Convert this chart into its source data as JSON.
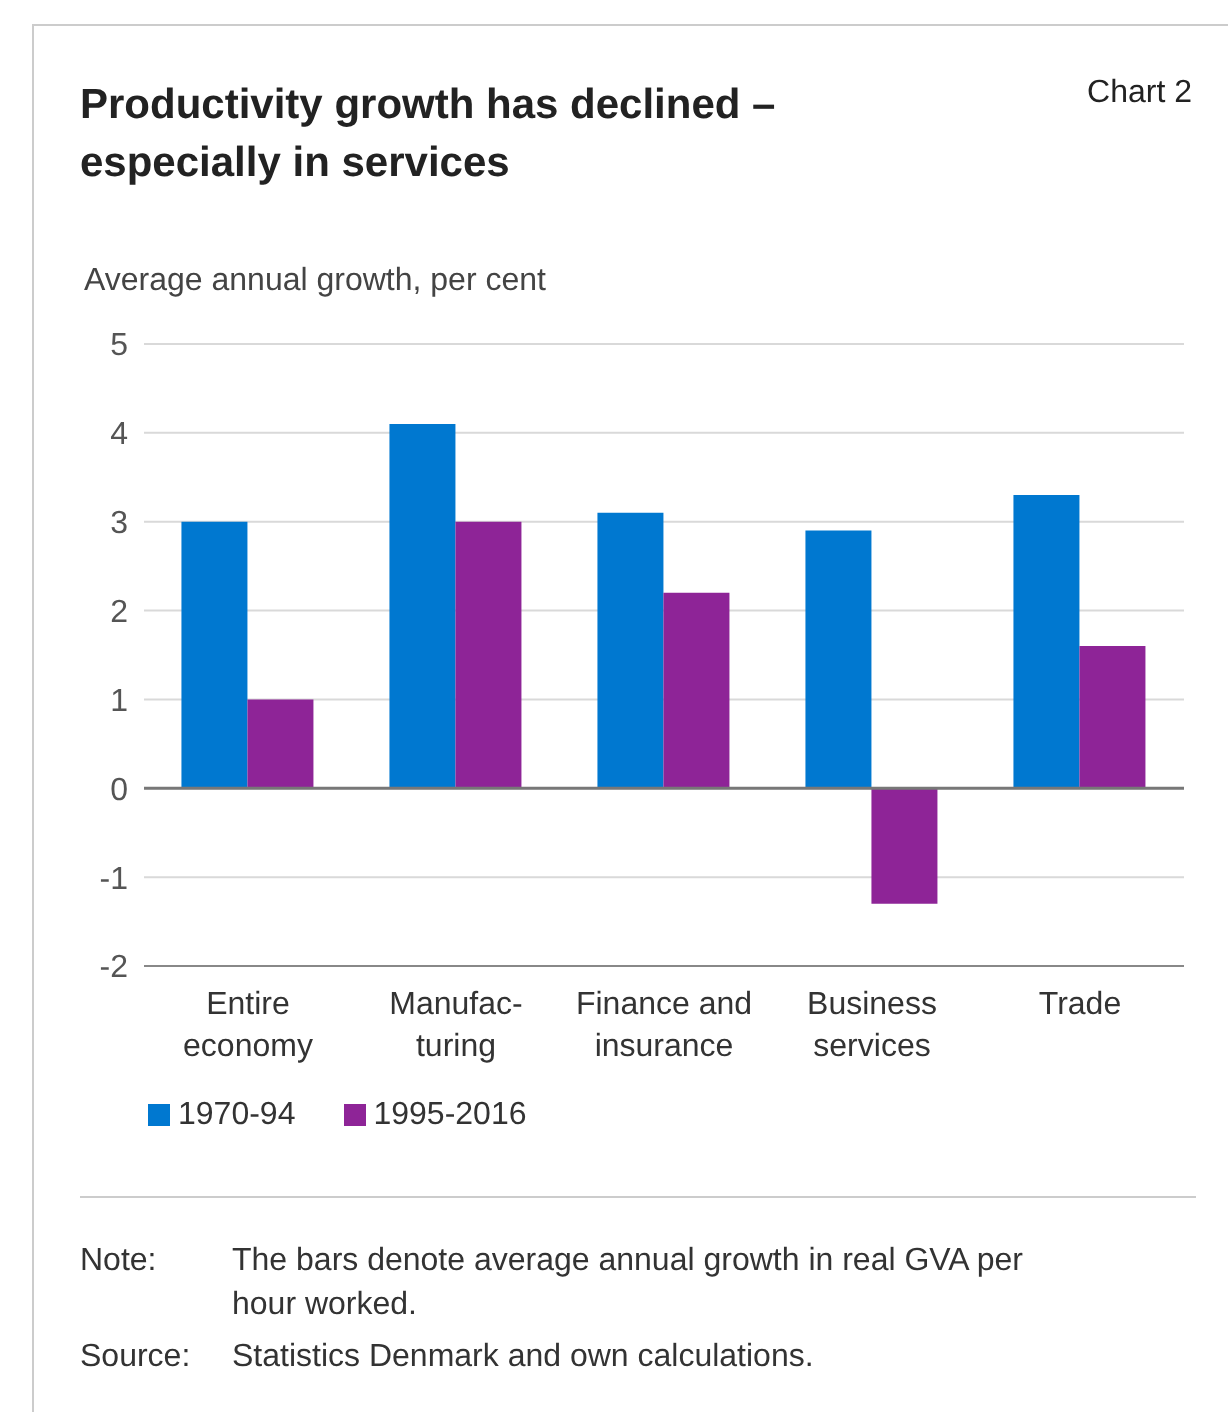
{
  "chart_data": {
    "type": "bar",
    "title": "Productivity growth has declined – especially in services",
    "ylabel": "Average annual growth, per cent",
    "categories": [
      "Entire economy",
      "Manufac-turing",
      "Finance and insurance",
      "Business services",
      "Trade"
    ],
    "series": [
      {
        "name": "1970-94",
        "color": "#0078d0",
        "values": [
          3.0,
          4.1,
          3.1,
          2.9,
          3.3
        ]
      },
      {
        "name": "1995-2016",
        "color": "#8e2497",
        "values": [
          1.0,
          3.0,
          2.2,
          -1.3,
          1.6
        ]
      }
    ],
    "ylim": [
      -2,
      5
    ],
    "yticks": [
      -2,
      -1,
      0,
      1,
      2,
      3,
      4,
      5
    ],
    "grid": "y",
    "legend": "bottom",
    "ref_lines": [
      {
        "axis": "y",
        "value": 0,
        "color": "#777777"
      }
    ],
    "annotations": [
      "Chart 2",
      "Note: The bars denote average annual growth in real GVA per hour worked.",
      "Source: Statistics Denmark and own calculations."
    ]
  }
}
